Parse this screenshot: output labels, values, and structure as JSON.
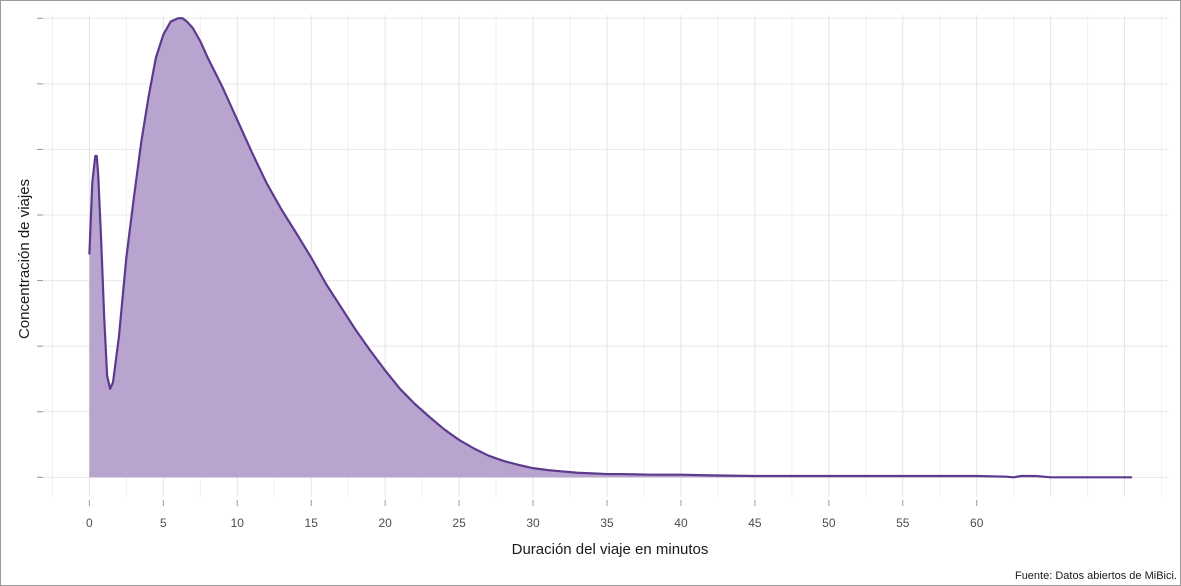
{
  "chart_data": {
    "type": "area",
    "title": "",
    "xlabel": "Duración del viaje en minutos",
    "ylabel": "Concentración de viajes",
    "caption": "Fuente: Datos abiertos de MiBici.",
    "xlim": [
      -3,
      73
    ],
    "ylim": [
      -0.003,
      0.0705
    ],
    "x_ticks": [
      0,
      5,
      10,
      15,
      20,
      25,
      30,
      35,
      40,
      45,
      50,
      55,
      60
    ],
    "y_ticks_shown": false,
    "grid": true,
    "legend": "none",
    "fill_color": "#b9a4cf",
    "line_color": "#5d3a8e",
    "series": [
      {
        "x": [
          0,
          0.2,
          0.4,
          0.5,
          0.6,
          0.8,
          1.0,
          1.2,
          1.4,
          1.6,
          2.0,
          2.5,
          3.0,
          3.5,
          4.0,
          4.5,
          5.0,
          5.5,
          6.0,
          6.3,
          6.6,
          7.0,
          7.5,
          8.0,
          9.0,
          10.0,
          11.0,
          12.0,
          13.0,
          14.0,
          15.0,
          16.0,
          17.0,
          18.0,
          19.0,
          20.0,
          21.0,
          22.0,
          23.0,
          24.0,
          25.0,
          26.0,
          27.0,
          28.0,
          29.0,
          30.0,
          31.0,
          32.0,
          33.0,
          34.0,
          35.0,
          36.0,
          38.0,
          40.0,
          42.0,
          45.0,
          48.0,
          50.0,
          52.0,
          55.0,
          58.0,
          60.0,
          62.0,
          62.5,
          63.0,
          64.0,
          65.0,
          68.0,
          70.5
        ],
        "y": [
          0.034,
          0.045,
          0.049,
          0.049,
          0.046,
          0.036,
          0.0245,
          0.0155,
          0.0135,
          0.0145,
          0.0215,
          0.0335,
          0.0425,
          0.051,
          0.058,
          0.064,
          0.0675,
          0.0695,
          0.07,
          0.07,
          0.0695,
          0.0685,
          0.0665,
          0.064,
          0.0595,
          0.0545,
          0.0495,
          0.0448,
          0.0408,
          0.0372,
          0.0335,
          0.0295,
          0.026,
          0.0225,
          0.0193,
          0.0163,
          0.0135,
          0.0112,
          0.0092,
          0.0073,
          0.0057,
          0.0044,
          0.0033,
          0.0025,
          0.0019,
          0.0014,
          0.0011,
          0.0009,
          0.0007,
          0.0006,
          0.0005,
          0.0005,
          0.0004,
          0.0004,
          0.0003,
          0.0002,
          0.0002,
          0.0002,
          0.0002,
          0.0002,
          0.0002,
          0.0002,
          0.0001,
          0.0,
          0.0002,
          0.0002,
          0.0,
          0.0,
          0.0
        ]
      }
    ]
  }
}
